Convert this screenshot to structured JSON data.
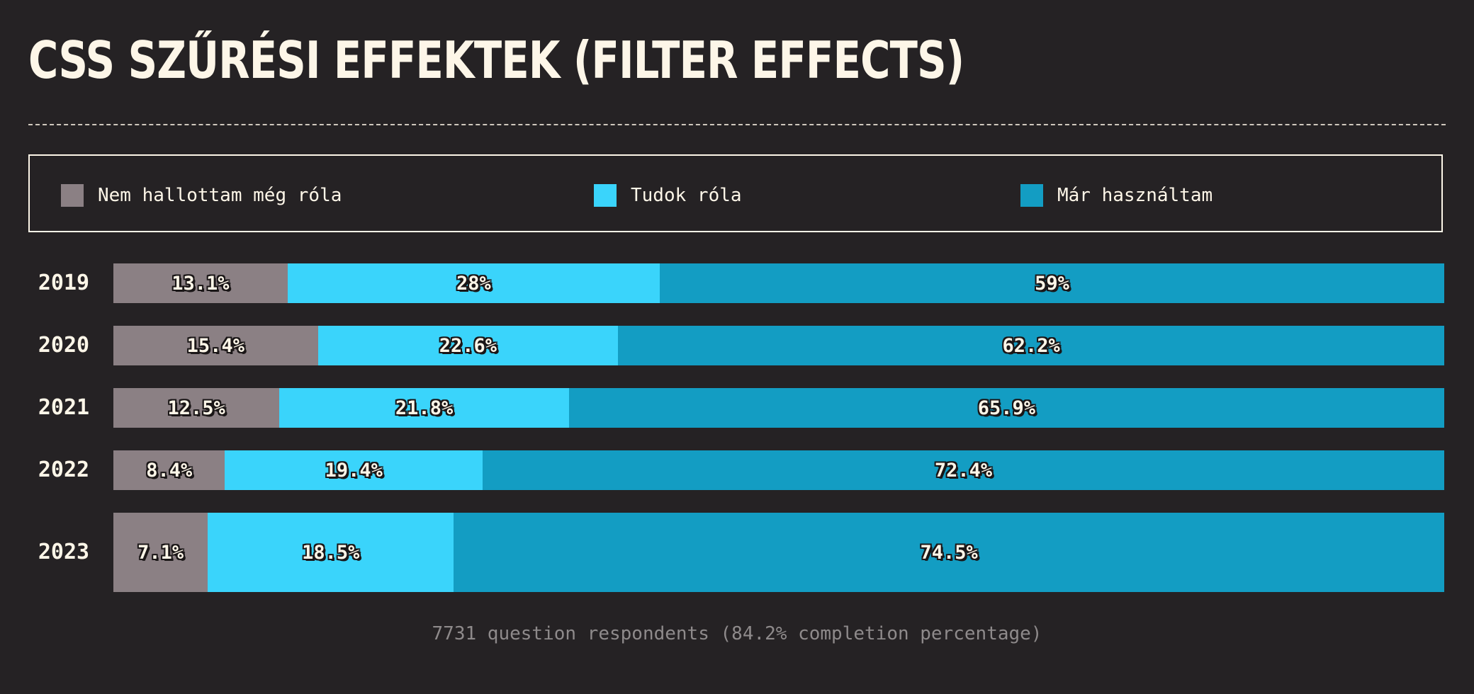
{
  "chart_data": {
    "type": "bar",
    "orientation": "horizontal",
    "stacked": true,
    "title": "CSS SZŰRÉSI EFFEKTEK (FILTER EFFECTS)",
    "categories": [
      "2019",
      "2020",
      "2021",
      "2022",
      "2023"
    ],
    "series": [
      {
        "name": "Nem hallottam még róla",
        "color": "#8b8084",
        "values": [
          13.1,
          15.4,
          12.5,
          8.4,
          7.1
        ],
        "labels": [
          "13.1%",
          "15.4%",
          "12.5%",
          "8.4%",
          "7.1%"
        ]
      },
      {
        "name": "Tudok róla",
        "color": "#3ad4fb",
        "values": [
          28,
          22.6,
          21.8,
          19.4,
          18.5
        ],
        "labels": [
          "28%",
          "22.6%",
          "21.8%",
          "19.4%",
          "18.5%"
        ]
      },
      {
        "name": "Már használtam",
        "color": "#139dc3",
        "values": [
          59,
          62.2,
          65.9,
          72.4,
          74.5
        ],
        "labels": [
          "59%",
          "62.2%",
          "65.9%",
          "72.4%",
          "74.5%"
        ]
      }
    ],
    "legend_placement": "top",
    "grid": false
  },
  "footer": "7731 question respondents (84.2% completion percentage)"
}
